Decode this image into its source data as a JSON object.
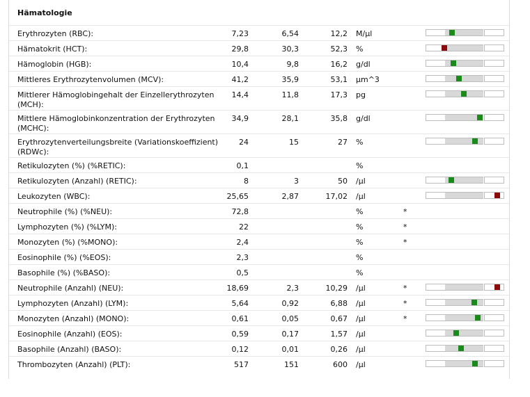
{
  "section": {
    "title": "Hämatologie"
  },
  "colors": {
    "normal": "#1a8a1a",
    "abnormal": "#8b0a0a"
  },
  "rows": [
    {
      "name": "Erythrozyten (RBC):",
      "value": "7,23",
      "low": "6,54",
      "high": "12,2",
      "unit": "M/µl",
      "flag": "",
      "gauge": true,
      "level": 0.32,
      "status": "normal"
    },
    {
      "name": "Hämatokrit (HCT):",
      "value": "29,8",
      "low": "30,3",
      "high": "52,3",
      "unit": "%",
      "flag": "",
      "gauge": true,
      "level": 0.22,
      "status": "abnormal"
    },
    {
      "name": "Hämoglobin (HGB):",
      "value": "10,4",
      "low": "9,8",
      "high": "16,2",
      "unit": "g/dl",
      "flag": "",
      "gauge": true,
      "level": 0.34,
      "status": "normal"
    },
    {
      "name": "Mittleres Erythrozytenvolumen (MCV):",
      "value": "41,2",
      "low": "35,9",
      "high": "53,1",
      "unit": "µm^3",
      "flag": "",
      "gauge": true,
      "level": 0.42,
      "status": "normal"
    },
    {
      "name": "Mittlerer Hämoglobingehalt der Einzellerythrozyten (MCH):",
      "value": "14,4",
      "low": "11,8",
      "high": "17,3",
      "unit": "pg",
      "flag": "",
      "gauge": true,
      "level": 0.49,
      "status": "normal"
    },
    {
      "name": "Mittlere Hämoglobinkonzentration der Erythrozyten (MCHC):",
      "value": "34,9",
      "low": "28,1",
      "high": "35,8",
      "unit": "g/dl",
      "flag": "",
      "gauge": true,
      "level": 0.7,
      "status": "normal"
    },
    {
      "name": "Erythrozytenverteilungsbreite (Variationskoeffizient) (RDWc):",
      "value": "24",
      "low": "15",
      "high": "27",
      "unit": "%",
      "flag": "",
      "gauge": true,
      "level": 0.64,
      "status": "normal"
    },
    {
      "name": "Retikulozyten (%) (%RETIC):",
      "value": "0,1",
      "low": "",
      "high": "",
      "unit": "%",
      "flag": "",
      "gauge": false
    },
    {
      "name": "Retikulozyten (Anzahl) (RETIC):",
      "value": "8",
      "low": "3",
      "high": "50",
      "unit": "/µl",
      "flag": "",
      "gauge": true,
      "level": 0.31,
      "status": "normal"
    },
    {
      "name": "Leukozyten (WBC):",
      "value": "25,65",
      "low": "2,87",
      "high": "17,02",
      "unit": "/µl",
      "flag": "",
      "gauge": true,
      "level": 0.94,
      "status": "abnormal"
    },
    {
      "name": "Neutrophile (%) (%NEU):",
      "value": "72,8",
      "low": "",
      "high": "",
      "unit": "%",
      "flag": "*",
      "gauge": false
    },
    {
      "name": "Lymphozyten (%) (%LYM):",
      "value": "22",
      "low": "",
      "high": "",
      "unit": "%",
      "flag": "*",
      "gauge": false
    },
    {
      "name": "Monozyten (%) (%MONO):",
      "value": "2,4",
      "low": "",
      "high": "",
      "unit": "%",
      "flag": "*",
      "gauge": false
    },
    {
      "name": "Eosinophile (%) (%EOS):",
      "value": "2,3",
      "low": "",
      "high": "",
      "unit": "%",
      "flag": "",
      "gauge": false
    },
    {
      "name": "Basophile (%) (%BASO):",
      "value": "0,5",
      "low": "",
      "high": "",
      "unit": "%",
      "flag": "",
      "gauge": false
    },
    {
      "name": "Neutrophile (Anzahl) (NEU):",
      "value": "18,69",
      "low": "2,3",
      "high": "10,29",
      "unit": "/µl",
      "flag": "*",
      "gauge": true,
      "level": 0.94,
      "status": "abnormal"
    },
    {
      "name": "Lymphozyten (Anzahl) (LYM):",
      "value": "5,64",
      "low": "0,92",
      "high": "6,88",
      "unit": "/µl",
      "flag": "*",
      "gauge": true,
      "level": 0.63,
      "status": "normal"
    },
    {
      "name": "Monozyten (Anzahl) (MONO):",
      "value": "0,61",
      "low": "0,05",
      "high": "0,67",
      "unit": "/µl",
      "flag": "*",
      "gauge": true,
      "level": 0.68,
      "status": "normal"
    },
    {
      "name": "Eosinophile (Anzahl) (EOS):",
      "value": "0,59",
      "low": "0,17",
      "high": "1,57",
      "unit": "/µl",
      "flag": "",
      "gauge": true,
      "level": 0.38,
      "status": "normal"
    },
    {
      "name": "Basophile (Anzahl) (BASO):",
      "value": "0,12",
      "low": "0,01",
      "high": "0,26",
      "unit": "/µl",
      "flag": "",
      "gauge": true,
      "level": 0.45,
      "status": "normal"
    },
    {
      "name": "Thrombozyten (Anzahl) (PLT):",
      "value": "517",
      "low": "151",
      "high": "600",
      "unit": "/µl",
      "flag": "",
      "gauge": true,
      "level": 0.64,
      "status": "normal"
    }
  ]
}
